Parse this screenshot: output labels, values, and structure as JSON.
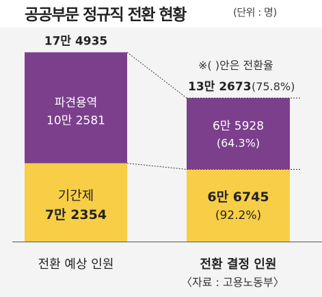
{
  "title": "공공부문 정규직 전환 현황",
  "unit": "(단위 : 명)",
  "note": "※(   )안은 전환율",
  "source": "〈자료 : 고용노동부〉",
  "colors": {
    "top": "#7b3f8c",
    "bottom": "#f7ce46"
  },
  "chart_data": {
    "type": "bar",
    "stacked": true,
    "categories": [
      "전환 예상 인원",
      "전환 결정 인원"
    ],
    "totals": [
      "17만 4935",
      "13만 2673"
    ],
    "total_values": [
      174935,
      132673
    ],
    "total_rates": [
      "",
      "(75.8%)"
    ],
    "series": [
      {
        "name": "파견용역",
        "values": [
          102581,
          65928
        ],
        "labels": [
          "10만 2581",
          "6만 5928"
        ],
        "rates": [
          "",
          "(64.3%)"
        ]
      },
      {
        "name": "기간제",
        "values": [
          72354,
          66745
        ],
        "labels": [
          "7만 2354",
          "6만 6745"
        ],
        "rates": [
          "",
          "(92.2%)"
        ]
      }
    ]
  }
}
